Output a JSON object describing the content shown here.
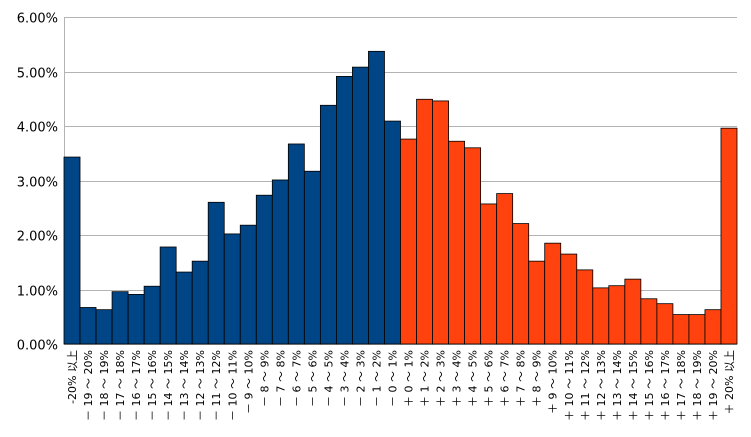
{
  "chart_data": {
    "type": "bar",
    "categories": [
      "-20% 以上",
      "－ 19 ～ 20%",
      "－ 18 ～ 19%",
      "－ 17 ～ 18%",
      "－ 16 ～ 17%",
      "－ 15 ～ 16%",
      "－ 14 ～ 15%",
      "－ 13 ～ 14%",
      "－ 12 ～ 13%",
      "－ 11 ～ 12%",
      "－ 10 ～ 11%",
      "－ 9 ～ 10%",
      "－ 8 ～ 9%",
      "－ 7 ～ 8%",
      "－ 6 ～ 7%",
      "－ 5 ～ 6%",
      "－ 4 ～ 5%",
      "－ 3 ～ 4%",
      "－ 2 ～ 3%",
      "－ 1 ～ 2%",
      "－ 0 ～ 1%",
      "＋ 0 ～ 1%",
      "＋ 1 ～ 2%",
      "＋ 2 ～ 3%",
      "＋ 3 ～ 4%",
      "＋ 4 ～ 5%",
      "＋ 5 ～ 6%",
      "＋ 6 ～ 7%",
      "＋ 7 ～ 8%",
      "＋ 8 ～ 9%",
      "＋ 9 ～ 10%",
      "＋ 10 ～ 11%",
      "＋ 11 ～ 12%",
      "＋ 12 ～ 13%",
      "＋ 13 ～ 14%",
      "＋ 14 ～ 15%",
      "＋ 15 ～ 16%",
      "＋ 16 ～ 17%",
      "＋ 17 ～ 18%",
      "＋ 18 ～ 19%",
      "＋ 19 ～ 20%",
      "＋ 20% 以上"
    ],
    "values": [
      3.43,
      0.67,
      0.63,
      0.96,
      0.91,
      1.06,
      1.78,
      1.32,
      1.52,
      2.6,
      2.02,
      2.18,
      2.73,
      3.01,
      3.67,
      3.17,
      4.38,
      4.91,
      5.08,
      5.37,
      4.09,
      3.76,
      4.49,
      4.46,
      3.72,
      3.6,
      2.57,
      2.76,
      2.21,
      1.52,
      1.85,
      1.65,
      1.36,
      1.03,
      1.07,
      1.19,
      0.83,
      0.74,
      0.54,
      0.54,
      0.63,
      3.96
    ],
    "colors": {
      "negative": "#004586",
      "positive": "#ff420e",
      "grid": "#b3b3b3",
      "outline": "#000000"
    },
    "color_split_index": 21,
    "ylim": [
      0,
      6
    ],
    "yticks": [
      "0.00%",
      "1.00%",
      "2.00%",
      "3.00%",
      "4.00%",
      "5.00%",
      "6.00%"
    ],
    "grid": true,
    "legend": "none",
    "title": "",
    "xlabel": "",
    "ylabel": ""
  }
}
